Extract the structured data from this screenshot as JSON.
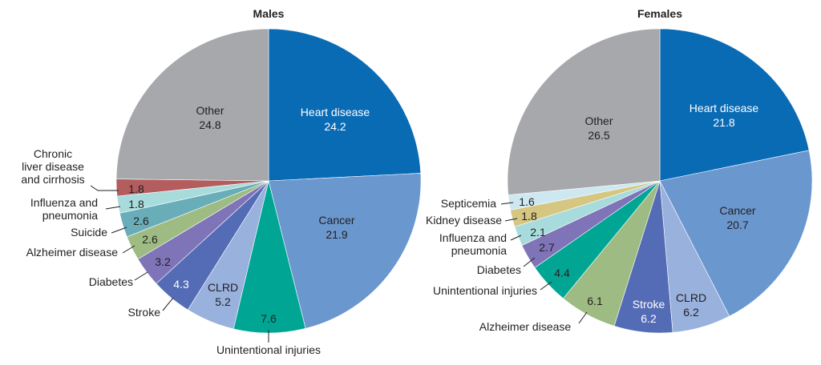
{
  "chart_data": [
    {
      "type": "pie",
      "title": "Males",
      "slices": [
        {
          "label": [
            "Heart disease"
          ],
          "value": 24.2,
          "value_label": "24.2",
          "color": "#0a6bb5"
        },
        {
          "label": [
            "Cancer"
          ],
          "value": 21.9,
          "value_label": "21.9",
          "color": "#6b97cf"
        },
        {
          "label": [
            "Unintentional injuries"
          ],
          "value": 7.6,
          "value_label": "7.6",
          "color": "#00a693"
        },
        {
          "label": [
            "CLRD"
          ],
          "value": 5.2,
          "value_label": "5.2",
          "color": "#98b1dd"
        },
        {
          "label": [
            "Stroke"
          ],
          "value": 4.3,
          "value_label": "4.3",
          "color": "#546cb5"
        },
        {
          "label": [
            "Diabetes"
          ],
          "value": 3.2,
          "value_label": "3.2",
          "color": "#7f74b8"
        },
        {
          "label": [
            "Alzheimer disease"
          ],
          "value": 2.6,
          "value_label": "2.6",
          "color": "#9dbb82"
        },
        {
          "label": [
            "Suicide"
          ],
          "value": 2.6,
          "value_label": "2.6",
          "color": "#69adb9"
        },
        {
          "label": [
            "Influenza and",
            "pneumonia"
          ],
          "value": 1.8,
          "value_label": "1.8",
          "color": "#a8dcdc"
        },
        {
          "label": [
            "Chronic",
            "liver disease",
            "and cirrhosis"
          ],
          "value": 1.8,
          "value_label": "1.8",
          "color": "#b35d5f"
        },
        {
          "label": [
            "Other"
          ],
          "value": 24.8,
          "value_label": "24.8",
          "color": "#a7a8ab"
        }
      ]
    },
    {
      "type": "pie",
      "title": "Females",
      "slices": [
        {
          "label": [
            "Heart disease"
          ],
          "value": 21.8,
          "value_label": "21.8",
          "color": "#0a6bb5"
        },
        {
          "label": [
            "Cancer"
          ],
          "value": 20.7,
          "value_label": "20.7",
          "color": "#6b97cf"
        },
        {
          "label": [
            "CLRD"
          ],
          "value": 6.2,
          "value_label": "6.2",
          "color": "#98b1dd"
        },
        {
          "label": [
            "Stroke"
          ],
          "value": 6.2,
          "value_label": "6.2",
          "color": "#546cb5"
        },
        {
          "label": [
            "Alzheimer disease"
          ],
          "value": 6.1,
          "value_label": "6.1",
          "color": "#9dbb82"
        },
        {
          "label": [
            "Unintentional injuries"
          ],
          "value": 4.4,
          "value_label": "4.4",
          "color": "#00a693"
        },
        {
          "label": [
            "Diabetes"
          ],
          "value": 2.7,
          "value_label": "2.7",
          "color": "#7f74b8"
        },
        {
          "label": [
            "Influenza and",
            "pneumonia"
          ],
          "value": 2.1,
          "value_label": "2.1",
          "color": "#a8dcdc"
        },
        {
          "label": [
            "Kidney disease"
          ],
          "value": 1.8,
          "value_label": "1.8",
          "color": "#d5c682"
        },
        {
          "label": [
            "Septicemia"
          ],
          "value": 1.6,
          "value_label": "1.6",
          "color": "#cde8f0"
        },
        {
          "label": [
            "Other"
          ],
          "value": 26.5,
          "value_label": "26.5",
          "color": "#a7a8ab"
        }
      ]
    }
  ]
}
